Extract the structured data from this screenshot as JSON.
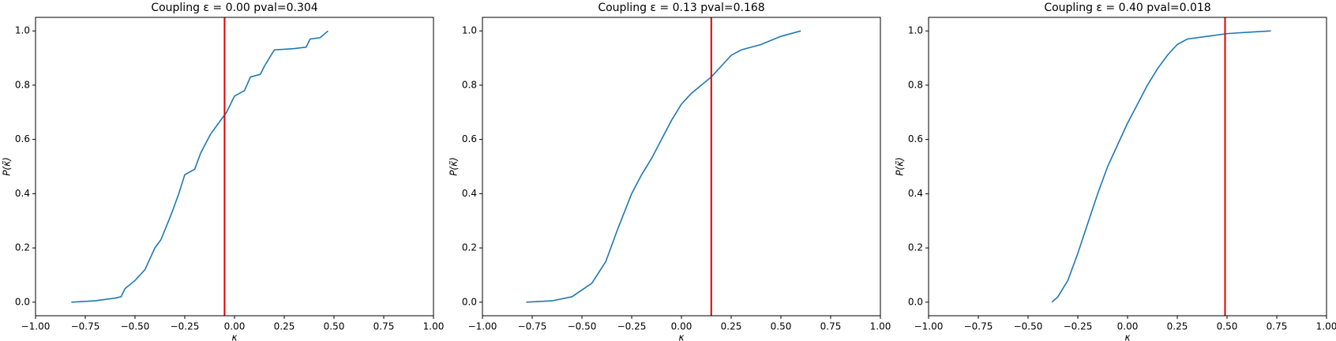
{
  "chart_data": [
    {
      "type": "line",
      "title": "Coupling ε = 0.00 pval=0.304",
      "xlabel": "κ",
      "ylabel": "P(κ̃)",
      "x": [
        -0.82,
        -0.7,
        -0.6,
        -0.57,
        -0.55,
        -0.5,
        -0.45,
        -0.4,
        -0.37,
        -0.32,
        -0.28,
        -0.25,
        -0.2,
        -0.17,
        -0.12,
        -0.08,
        -0.04,
        0,
        0.05,
        0.08,
        0.13,
        0.15,
        0.2,
        0.3,
        0.36,
        0.38,
        0.43,
        0.47
      ],
      "series": [
        {
          "color": "#1f77b4",
          "values": [
            0,
            0.005,
            0.015,
            0.02,
            0.05,
            0.08,
            0.12,
            0.2,
            0.23,
            0.32,
            0.4,
            0.47,
            0.49,
            0.55,
            0.62,
            0.66,
            0.7,
            0.76,
            0.78,
            0.83,
            0.84,
            0.87,
            0.93,
            0.935,
            0.94,
            0.97,
            0.975,
            1.0
          ]
        }
      ],
      "vline": -0.05,
      "vline_color": "#e00000",
      "xlim": [
        -1,
        1
      ],
      "ylim": [
        -0.05,
        1.05
      ],
      "xticks": [
        {
          "value": -1,
          "label": "−1.00"
        },
        {
          "value": -0.75,
          "label": "−0.75"
        },
        {
          "value": -0.5,
          "label": "−0.50"
        },
        {
          "value": -0.25,
          "label": "−0.25"
        },
        {
          "value": 0,
          "label": "0.00"
        },
        {
          "value": 0.25,
          "label": "0.25"
        },
        {
          "value": 0.5,
          "label": "0.50"
        },
        {
          "value": 0.75,
          "label": "0.75"
        },
        {
          "value": 1,
          "label": "1.00"
        }
      ],
      "yticks": [
        {
          "value": 0,
          "label": "0.0"
        },
        0.2,
        0.4,
        0.6,
        0.8,
        {
          "value": 1,
          "label": "1.0"
        }
      ]
    },
    {
      "type": "line",
      "title": "Coupling ε = 0.13 pval=0.168",
      "xlabel": "κ",
      "ylabel": "P(κ̃)",
      "x": [
        -0.78,
        -0.65,
        -0.55,
        -0.45,
        -0.38,
        -0.32,
        -0.25,
        -0.2,
        -0.15,
        -0.1,
        -0.05,
        0,
        0.05,
        0.1,
        0.15,
        0.2,
        0.25,
        0.3,
        0.4,
        0.5,
        0.6
      ],
      "series": [
        {
          "color": "#1f77b4",
          "values": [
            0,
            0.005,
            0.02,
            0.07,
            0.15,
            0.27,
            0.4,
            0.47,
            0.53,
            0.6,
            0.67,
            0.73,
            0.77,
            0.8,
            0.83,
            0.87,
            0.91,
            0.93,
            0.95,
            0.98,
            1.0
          ]
        }
      ],
      "vline": 0.15,
      "vline_color": "#e00000",
      "xlim": [
        -1,
        1
      ],
      "ylim": [
        -0.05,
        1.05
      ],
      "xticks": [
        {
          "value": -1,
          "label": "−1.00"
        },
        {
          "value": -0.75,
          "label": "−0.75"
        },
        {
          "value": -0.5,
          "label": "−0.50"
        },
        {
          "value": -0.25,
          "label": "−0.25"
        },
        {
          "value": 0,
          "label": "0.00"
        },
        {
          "value": 0.25,
          "label": "0.25"
        },
        {
          "value": 0.5,
          "label": "0.50"
        },
        {
          "value": 0.75,
          "label": "0.75"
        },
        {
          "value": 1,
          "label": "1.00"
        }
      ],
      "yticks": [
        {
          "value": 0,
          "label": "0.0"
        },
        0.2,
        0.4,
        0.6,
        0.8,
        {
          "value": 1,
          "label": "1.0"
        }
      ]
    },
    {
      "type": "line",
      "title": "Coupling ε = 0.40 pval=0.018",
      "xlabel": "κ",
      "ylabel": "P(κ̃)",
      "x": [
        -0.38,
        -0.35,
        -0.3,
        -0.25,
        -0.2,
        -0.15,
        -0.1,
        -0.05,
        0,
        0.05,
        0.1,
        0.15,
        0.2,
        0.25,
        0.3,
        0.4,
        0.5,
        0.6,
        0.72
      ],
      "series": [
        {
          "color": "#1f77b4",
          "values": [
            0,
            0.02,
            0.08,
            0.18,
            0.29,
            0.4,
            0.5,
            0.58,
            0.66,
            0.73,
            0.8,
            0.86,
            0.91,
            0.95,
            0.97,
            0.98,
            0.99,
            0.995,
            1.0
          ]
        }
      ],
      "vline": 0.49,
      "vline_color": "#e00000",
      "xlim": [
        -1,
        1
      ],
      "ylim": [
        -0.05,
        1.05
      ],
      "xticks": [
        {
          "value": -1,
          "label": "−1.00"
        },
        {
          "value": -0.75,
          "label": "−0.75"
        },
        {
          "value": -0.5,
          "label": "−0.50"
        },
        {
          "value": -0.25,
          "label": "−0.25"
        },
        {
          "value": 0,
          "label": "0.00"
        },
        {
          "value": 0.25,
          "label": "0.25"
        },
        {
          "value": 0.5,
          "label": "0.50"
        },
        {
          "value": 0.75,
          "label": "0.75"
        },
        {
          "value": 1,
          "label": "1.00"
        }
      ],
      "yticks": [
        {
          "value": 0,
          "label": "0.0"
        },
        0.2,
        0.4,
        0.6,
        0.8,
        {
          "value": 1,
          "label": "1.0"
        }
      ]
    }
  ]
}
